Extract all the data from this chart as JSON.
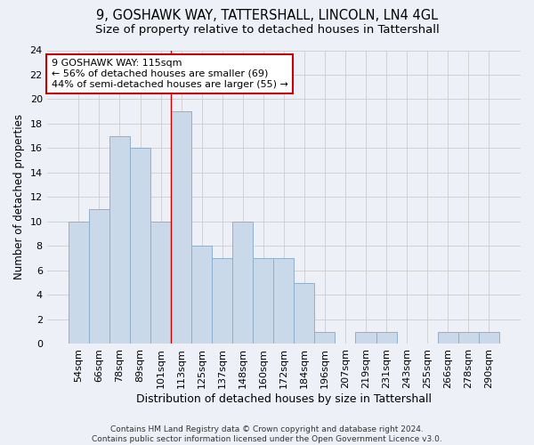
{
  "title": "9, GOSHAWK WAY, TATTERSHALL, LINCOLN, LN4 4GL",
  "subtitle": "Size of property relative to detached houses in Tattershall",
  "xlabel": "Distribution of detached houses by size in Tattershall",
  "ylabel": "Number of detached properties",
  "bin_labels": [
    "54sqm",
    "66sqm",
    "78sqm",
    "89sqm",
    "101sqm",
    "113sqm",
    "125sqm",
    "137sqm",
    "148sqm",
    "160sqm",
    "172sqm",
    "184sqm",
    "196sqm",
    "207sqm",
    "219sqm",
    "231sqm",
    "243sqm",
    "255sqm",
    "266sqm",
    "278sqm",
    "290sqm"
  ],
  "bar_heights": [
    10,
    11,
    17,
    16,
    10,
    19,
    8,
    7,
    10,
    7,
    7,
    5,
    1,
    0,
    1,
    1,
    0,
    0,
    1,
    1,
    1
  ],
  "bar_color": "#c9d9ea",
  "bar_edge_color": "#8fb0cc",
  "vline_color": "#cc0000",
  "vline_x_index": 5,
  "annotation_text": "9 GOSHAWK WAY: 115sqm\n← 56% of detached houses are smaller (69)\n44% of semi-detached houses are larger (55) →",
  "annotation_box_color": "#ffffff",
  "annotation_box_edge": "#cc0000",
  "ylim": [
    0,
    24
  ],
  "yticks": [
    0,
    2,
    4,
    6,
    8,
    10,
    12,
    14,
    16,
    18,
    20,
    22,
    24
  ],
  "grid_color": "#cccccc",
  "background_color": "#edf1f7",
  "footer_text": "Contains HM Land Registry data © Crown copyright and database right 2024.\nContains public sector information licensed under the Open Government Licence v3.0.",
  "title_fontsize": 10.5,
  "subtitle_fontsize": 9.5,
  "ylabel_fontsize": 8.5,
  "xlabel_fontsize": 9,
  "tick_fontsize": 8,
  "annotation_fontsize": 8,
  "footer_fontsize": 6.5
}
